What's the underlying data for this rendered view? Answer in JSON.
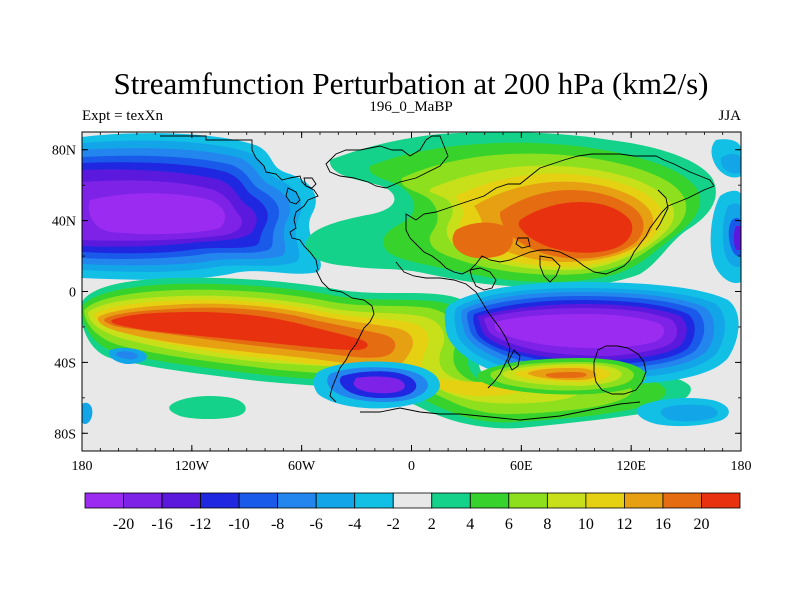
{
  "chart_data": {
    "type": "heatmap",
    "title": "Streamfunction Perturbation at 200 hPa (km2/s)",
    "subtitle_left": "Expt = texXn",
    "subtitle_center": "196_0_MaBP",
    "subtitle_right": "JJA",
    "x_ticks": [
      {
        "value": -180,
        "label": "180"
      },
      {
        "value": -120,
        "label": "120W"
      },
      {
        "value": -60,
        "label": "60W"
      },
      {
        "value": 0,
        "label": "0"
      },
      {
        "value": 60,
        "label": "60E"
      },
      {
        "value": 120,
        "label": "120E"
      },
      {
        "value": 180,
        "label": "180"
      }
    ],
    "y_ticks": [
      {
        "value": 80,
        "label": "80N"
      },
      {
        "value": 40,
        "label": "40N"
      },
      {
        "value": 0,
        "label": "0"
      },
      {
        "value": -40,
        "label": "40S"
      },
      {
        "value": -80,
        "label": "80S"
      }
    ],
    "xlim": [
      -180,
      180
    ],
    "ylim": [
      -90,
      90
    ],
    "colorbar": {
      "levels": [
        "-20",
        "-16",
        "-12",
        "-10",
        "-8",
        "-6",
        "-4",
        "-2",
        "2",
        "4",
        "6",
        "8",
        "10",
        "12",
        "16",
        "20"
      ],
      "colors": [
        "#9b2bf0",
        "#7d22e6",
        "#5a19dc",
        "#1f28e0",
        "#1a5aeb",
        "#2385ee",
        "#12a6e8",
        "#12c0e6",
        "#e8e8e8",
        "#14d28a",
        "#37d22c",
        "#8ee01e",
        "#c8e01a",
        "#e6d012",
        "#e6a012",
        "#e66c12",
        "#e8320f"
      ]
    },
    "features": [
      {
        "name": "north-pacific-low",
        "value": -20,
        "lon": -135,
        "lat": 38,
        "dlon": 45,
        "dlat": 26
      },
      {
        "name": "north-pacific-low-core",
        "value": -20,
        "lon": -112,
        "lat": 38,
        "dlon": 34,
        "dlat": 14
      },
      {
        "name": "eurasia-high",
        "value": 20,
        "lon": 75,
        "lat": 30,
        "dlon": 58,
        "dlat": 32
      },
      {
        "name": "south-pacific-high",
        "value": 20,
        "lon": -95,
        "lat": -15,
        "dlon": 78,
        "dlat": 20
      },
      {
        "name": "south-atlantic-high",
        "value": 12,
        "lon": 20,
        "lat": -28,
        "dlon": 35,
        "dlat": 20
      },
      {
        "name": "indian-ocean-low",
        "value": -20,
        "lon": 95,
        "lat": -22,
        "dlon": 52,
        "dlat": 18
      },
      {
        "name": "southern-ocean-low",
        "value": -16,
        "lon": -18,
        "lat": -52,
        "dlon": 22,
        "dlat": 10
      },
      {
        "name": "south-indian-high",
        "value": 10,
        "lon": 75,
        "lat": -50,
        "dlon": 38,
        "dlat": 10
      }
    ]
  }
}
